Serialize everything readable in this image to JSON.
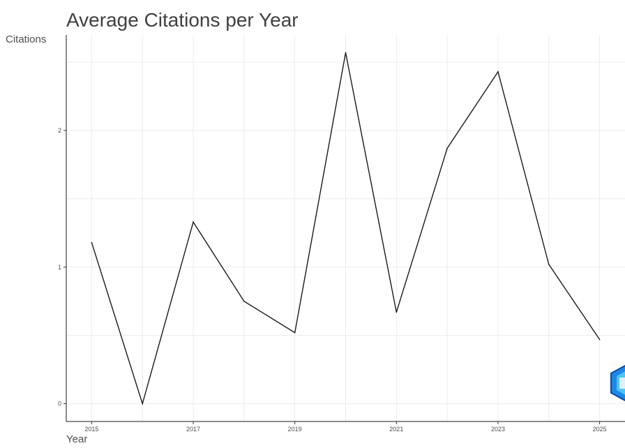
{
  "chart_data": {
    "type": "line",
    "title": "Average Citations per Year",
    "xlabel": "Year",
    "ylabel": "Citations",
    "x": [
      2015,
      2016,
      2017,
      2018,
      2019,
      2020,
      2021,
      2022,
      2023,
      2024,
      2025
    ],
    "series": [
      {
        "values": [
          1.18,
          0.0,
          1.33,
          0.75,
          0.52,
          2.57,
          0.67,
          1.87,
          2.43,
          1.02,
          0.47
        ]
      }
    ],
    "x_ticks": [
      "2015",
      "2017",
      "2019",
      "2021",
      "2023",
      "2025"
    ],
    "y_ticks": [
      "0",
      "1",
      "2"
    ],
    "xlim": [
      2014.5,
      2025.5
    ],
    "ylim": [
      -0.13,
      2.7
    ],
    "grid": true,
    "line_color": "#1a1a1a"
  }
}
